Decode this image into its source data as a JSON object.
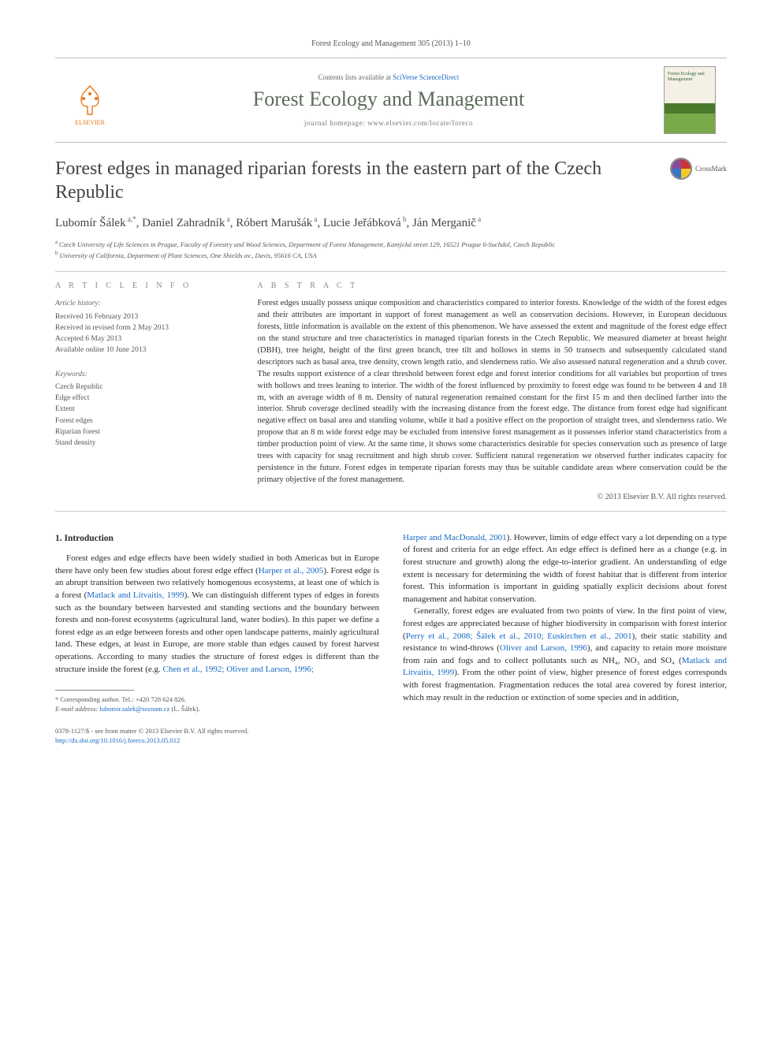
{
  "header": {
    "citation": "Forest Ecology and Management 305 (2013) 1–10",
    "contents_prefix": "Contents lists available at ",
    "contents_link": "SciVerse ScienceDirect",
    "journal_name": "Forest Ecology and Management",
    "homepage_prefix": "journal homepage: ",
    "homepage_url": "www.elsevier.com/locate/foreco",
    "publisher_logo_label": "ELSEVIER",
    "cover_title": "Forest Ecology and Management",
    "crossmark_label": "CrossMark"
  },
  "article": {
    "title": "Forest edges in managed riparian forests in the eastern part of the Czech Republic",
    "authors_html": "Lubomír Šálek<data-sup> a,*</data-sup>, Daniel Zahradník<data-sup> a</data-sup>, Róbert Marušák<data-sup> a</data-sup>, Lucie Jeřábková<data-sup> b</data-sup>, Ján Merganič<data-sup> a</data-sup>",
    "affiliations": [
      {
        "tag": "a",
        "text": "Czech University of Life Sciences in Prague, Faculty of Forestry and Wood Sciences, Department of Forest Management, Kamýcká street 129, 16521 Prague 6-Suchdol, Czech Republic"
      },
      {
        "tag": "b",
        "text": "University of California, Department of Plant Sciences, One Shields av., Davis, 95616 CA, USA"
      }
    ]
  },
  "info": {
    "head": "A R T I C L E  I N F O",
    "history_title": "Article history:",
    "history": [
      "Received 16 February 2013",
      "Received in revised form 2 May 2013",
      "Accepted 6 May 2013",
      "Available online 10 June 2013"
    ],
    "keywords_title": "Keywords:",
    "keywords": [
      "Czech Republic",
      "Edge effect",
      "Extent",
      "Forest edges",
      "Riparian forest",
      "Stand density"
    ]
  },
  "abstract": {
    "head": "A B S T R A C T",
    "text": "Forest edges usually possess unique composition and characteristics compared to interior forests. Knowledge of the width of the forest edges and their attributes are important in support of forest management as well as conservation decisions. However, in European deciduous forests, little information is available on the extent of this phenomenon. We have assessed the extent and magnitude of the forest edge effect on the stand structure and tree characteristics in managed riparian forests in the Czech Republic. We measured diameter at breast height (DBH), tree height, height of the first green branch, tree tilt and hollows in stems in 50 transects and subsequently calculated stand descriptors such as basal area, tree density, crown length ratio, and slenderness ratio. We also assessed natural regeneration and a shrub cover. The results support existence of a clear threshold between forest edge and forest interior conditions for all variables but proportion of trees with hollows and trees leaning to interior. The width of the forest influenced by proximity to forest edge was found to be between 4 and 18 m, with an average width of 8 m. Density of natural regeneration remained constant for the first 15 m and then declined farther into the interior. Shrub coverage declined steadily with the increasing distance from the forest edge. The distance from forest edge had significant negative effect on basal area and standing volume, while it had a positive effect on the proportion of straight trees, and slenderness ratio. We propose that an 8 m wide forest edge may be excluded from intensive forest management as it possesses inferior stand characteristics from a timber production point of view. At the same time, it shows some characteristics desirable for species conservation such as presence of large trees with capacity for snag recruitment and high shrub cover. Sufficient natural regeneration we observed further indicates capacity for persistence in the future. Forest edges in temperate riparian forests may thus be suitable candidate areas where conservation could be the primary objective of the forest management.",
    "copyright": "© 2013 Elsevier B.V. All rights reserved."
  },
  "body": {
    "heading": "1. Introduction",
    "col1_p1_a": "Forest edges and edge effects have been widely studied in both Americas but in Europe there have only been few studies about forest edge effect (",
    "col1_ref1": "Harper et al., 2005",
    "col1_p1_b": "). Forest edge is an abrupt transition between two relatively homogenous ecosystems, at least one of which is a forest (",
    "col1_ref2": "Matlack and Litvaitis, 1999",
    "col1_p1_c": "). We can distinguish different types of edges in forests such as the boundary between harvested and standing sections and the boundary between forests and non-forest ecosystems (agricultural land, water bodies). In this paper we define a forest edge as an edge between forests and other open landscape patterns, mainly agricultural land. These edges, at least in Europe, are more stable than edges caused by forest harvest operations. According to many studies the structure of forest edges is different than the structure inside the forest (e.g. ",
    "col1_ref3": "Chen et al., 1992; Oliver and Larson, 1996;",
    "col2_ref1": "Harper and MacDonald, 2001",
    "col2_p1_a": "). However, limits of edge effect vary a lot depending on a type of forest and criteria for an edge effect. An edge effect is defined here as a change (e.g. in forest structure and growth) along the edge-to-interior gradient. An understanding of edge extent is necessary for determining the width of forest habitat that is different from interior forest. This information is important in guiding spatially explicit decisions about forest management and habitat conservation.",
    "col2_p2_a": "Generally, forest edges are evaluated from two points of view. In the first point of view, forest edges are appreciated because of higher biodiversity in comparison with forest interior (",
    "col2_ref2": "Perry et al., 2008; Šálek et al., 2010; Euskirchen et al., 2001",
    "col2_p2_b": "), their static stability and resistance to wind-throws (",
    "col2_ref3": "Oliver and Larson, 1996",
    "col2_p2_c": "), and capacity to retain more moisture from rain and fogs and to collect pollutants such as NH₄, NO₃ and SO₄ (",
    "col2_ref4": "Matlack and Litvaitis, 1999",
    "col2_p2_d": "). From the other point of view, higher presence of forest edges corresponds with forest fragmentation. Fragmentation reduces the total area covered by forest interior, which may result in the reduction or extinction of some species and in addition,"
  },
  "footnote": {
    "corr_label": "* Corresponding author. Tel.: +420 728 624 826.",
    "email_label": "E-mail address:",
    "email": "lubomir.salek@seznam.cz",
    "email_suffix": "(L. Šálek)."
  },
  "bottom": {
    "issn": "0378-1127/$ - see front matter © 2013 Elsevier B.V. All rights reserved.",
    "doi": "http://dx.doi.org/10.1016/j.foreco.2013.05.012"
  },
  "colors": {
    "link": "#1769c4",
    "journal": "#5a6b58",
    "publisher": "#e67817"
  }
}
